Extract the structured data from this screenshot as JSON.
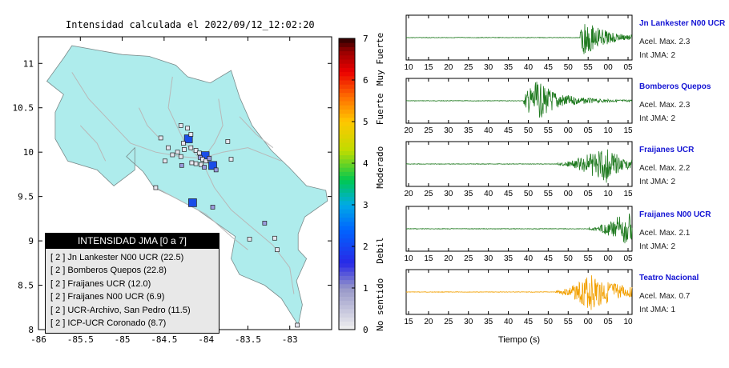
{
  "map": {
    "title": "Intensidad calculada el 2022/09/12_12:02:20",
    "lon_ticks": [
      "-86",
      "-85.5",
      "-85",
      "-84.5",
      "-84",
      "-83.5",
      "-83"
    ],
    "lat_ticks": [
      "11",
      "10.5",
      "10",
      "9.5",
      "9",
      "8.5",
      "8"
    ],
    "xlim": [
      -86,
      -82.5
    ],
    "ylim": [
      8,
      11.3
    ],
    "stations": [
      {
        "lon": -84.21,
        "lat": 10.15,
        "int": 2
      },
      {
        "lon": -84.01,
        "lat": 9.96,
        "int": 2
      },
      {
        "lon": -83.92,
        "lat": 9.85,
        "int": 2
      },
      {
        "lon": -84.16,
        "lat": 9.43,
        "int": 2
      },
      {
        "lon": -84.07,
        "lat": 9.94,
        "int": 1
      },
      {
        "lon": -84.3,
        "lat": 10.3,
        "int": 0
      },
      {
        "lon": -84.22,
        "lat": 10.27,
        "int": 0
      },
      {
        "lon": -84.18,
        "lat": 10.2,
        "int": 0
      },
      {
        "lon": -84.27,
        "lat": 10.1,
        "int": 0
      },
      {
        "lon": -84.18,
        "lat": 10.05,
        "int": 0
      },
      {
        "lon": -84.12,
        "lat": 10.02,
        "int": 0
      },
      {
        "lon": -84.08,
        "lat": 9.99,
        "int": 0
      },
      {
        "lon": -84.04,
        "lat": 9.92,
        "int": 0
      },
      {
        "lon": -84.0,
        "lat": 9.9,
        "int": 0
      },
      {
        "lon": -83.96,
        "lat": 9.93,
        "int": 1
      },
      {
        "lon": -84.12,
        "lat": 9.87,
        "int": 0
      },
      {
        "lon": -84.06,
        "lat": 9.86,
        "int": 0
      },
      {
        "lon": -84.02,
        "lat": 9.83,
        "int": 1
      },
      {
        "lon": -83.88,
        "lat": 9.8,
        "int": 1
      },
      {
        "lon": -84.45,
        "lat": 10.05,
        "int": 0
      },
      {
        "lon": -84.4,
        "lat": 9.97,
        "int": 0
      },
      {
        "lon": -84.34,
        "lat": 10.0,
        "int": 0
      },
      {
        "lon": -84.3,
        "lat": 9.95,
        "int": 0
      },
      {
        "lon": -84.26,
        "lat": 10.03,
        "int": 0
      },
      {
        "lon": -84.17,
        "lat": 9.88,
        "int": 0
      },
      {
        "lon": -84.49,
        "lat": 9.9,
        "int": 0
      },
      {
        "lon": -84.29,
        "lat": 9.85,
        "int": 1
      },
      {
        "lon": -83.74,
        "lat": 10.12,
        "int": 0
      },
      {
        "lon": -83.7,
        "lat": 9.92,
        "int": 0
      },
      {
        "lon": -84.54,
        "lat": 10.16,
        "int": 0
      },
      {
        "lon": -83.92,
        "lat": 9.38,
        "int": 1
      },
      {
        "lon": -83.48,
        "lat": 9.02,
        "int": 0
      },
      {
        "lon": -83.18,
        "lat": 9.03,
        "int": 0
      },
      {
        "lon": -83.15,
        "lat": 8.9,
        "int": 0
      },
      {
        "lon": -83.3,
        "lat": 9.2,
        "int": 1
      },
      {
        "lon": -82.91,
        "lat": 8.05,
        "int": 0
      },
      {
        "lon": -84.6,
        "lat": 9.6,
        "int": 0
      }
    ],
    "legend": {
      "title": "INTENSIDAD JMA [0 a 7]",
      "items": [
        "[ 2 ] Jn Lankester N00 UCR (22.5)",
        "[ 2 ] Bomberos Quepos (22.8)",
        "[ 2 ] Fraijanes UCR (12.0)",
        "[ 2 ] Fraijanes N00 UCR (6.9)",
        "[ 2 ] UCR-Archivo, San Pedro (11.5)",
        "[ 2 ] ICP-UCR Coronado (8.7)"
      ]
    },
    "colorbar": {
      "ticks": [
        "0",
        "1",
        "2",
        "3",
        "4",
        "5",
        "6",
        "7"
      ],
      "range": [
        0,
        7
      ],
      "labels": [
        {
          "text": "No sentido",
          "at": 0.6
        },
        {
          "text": "Debil",
          "at": 1.9
        },
        {
          "text": "Moderado",
          "at": 3.9
        },
        {
          "text": "Fuerte",
          "at": 5.3
        },
        {
          "text": "Muy Fuerte",
          "at": 6.5
        }
      ]
    }
  },
  "seismograms": {
    "xlabel": "Tiempo (s)",
    "traces": [
      {
        "station": "Jn Lankester N00 UCR",
        "accel": "Acel. Max. 2.3",
        "int": "Int JMA: 2",
        "color": "#1f7a1f",
        "ticks": [
          "10",
          "15",
          "20",
          "25",
          "30",
          "35",
          "40",
          "45",
          "50",
          "55",
          "00",
          "05"
        ],
        "onset": 0.77,
        "peak": 0.79,
        "decay": 0.09,
        "growth": 0.0,
        "amp": 0.85,
        "seed": 3
      },
      {
        "station": "Bomberos Quepos",
        "accel": "Acel. Max. 2.3",
        "int": "Int JMA: 2",
        "color": "#1f7a1f",
        "ticks": [
          "20",
          "25",
          "30",
          "35",
          "40",
          "45",
          "50",
          "55",
          "00",
          "05",
          "10",
          "15"
        ],
        "onset": 0.52,
        "peak": 0.58,
        "decay": 0.1,
        "growth": 0.0,
        "amp": 0.9,
        "seed": 7
      },
      {
        "station": "Fraijanes UCR",
        "accel": "Acel. Max. 2.2",
        "int": "Int JMA: 2",
        "color": "#1f7a1f",
        "ticks": [
          "20",
          "25",
          "30",
          "35",
          "40",
          "45",
          "50",
          "55",
          "00",
          "05",
          "10",
          "15"
        ],
        "onset": 0.67,
        "peak": 0.89,
        "decay": 0.06,
        "growth": 0.12,
        "amp": 0.95,
        "seed": 11
      },
      {
        "station": "Fraijanes N00 UCR",
        "accel": "Acel. Max. 2.1",
        "int": "Int JMA: 2",
        "color": "#1f7a1f",
        "ticks": [
          "10",
          "15",
          "20",
          "25",
          "30",
          "35",
          "40",
          "45",
          "50",
          "55",
          "00",
          "05"
        ],
        "onset": 0.81,
        "peak": 0.99,
        "decay": 0.03,
        "growth": 0.1,
        "amp": 0.95,
        "seed": 13
      },
      {
        "station": "Teatro Nacional",
        "accel": "Acel. Max. 0.7",
        "int": "Int JMA: 1",
        "color": "#f2a000",
        "ticks": [
          "15",
          "20",
          "25",
          "30",
          "35",
          "40",
          "45",
          "50",
          "55",
          "00",
          "05",
          "10"
        ],
        "onset": 0.66,
        "peak": 0.82,
        "decay": 0.12,
        "growth": 0.12,
        "amp": 0.9,
        "seed": 17
      }
    ]
  }
}
